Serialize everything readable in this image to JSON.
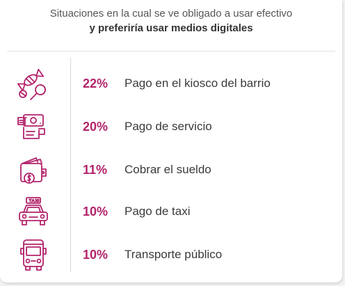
{
  "title": {
    "line1": "Situaciones en la cual se ve obligado a usar efectivo",
    "line2": "y preferiría usar medios digitales"
  },
  "colors": {
    "accent": "#b3236b",
    "icon": "#b3236b",
    "text": "#3a3a3a"
  },
  "chart_data": {
    "type": "table",
    "title": "Situaciones en la cual se ve obligado a usar efectivo y preferiría usar medios digitales",
    "rows": [
      {
        "icon": "candy-lollipop-icon",
        "value": 22,
        "value_label": "22%",
        "label": "Pago en el kiosco del barrio"
      },
      {
        "icon": "bill-payment-icon",
        "value": 20,
        "value_label": "20%",
        "label": "Pago de servicio"
      },
      {
        "icon": "wallet-coin-icon",
        "value": 11,
        "value_label": "11%",
        "label": "Cobrar el sueldo"
      },
      {
        "icon": "taxi-icon",
        "value": 10,
        "value_label": "10%",
        "label": "Pago de taxi"
      },
      {
        "icon": "bus-icon",
        "value": 10,
        "value_label": "10%",
        "label": "Transporte público"
      }
    ]
  }
}
